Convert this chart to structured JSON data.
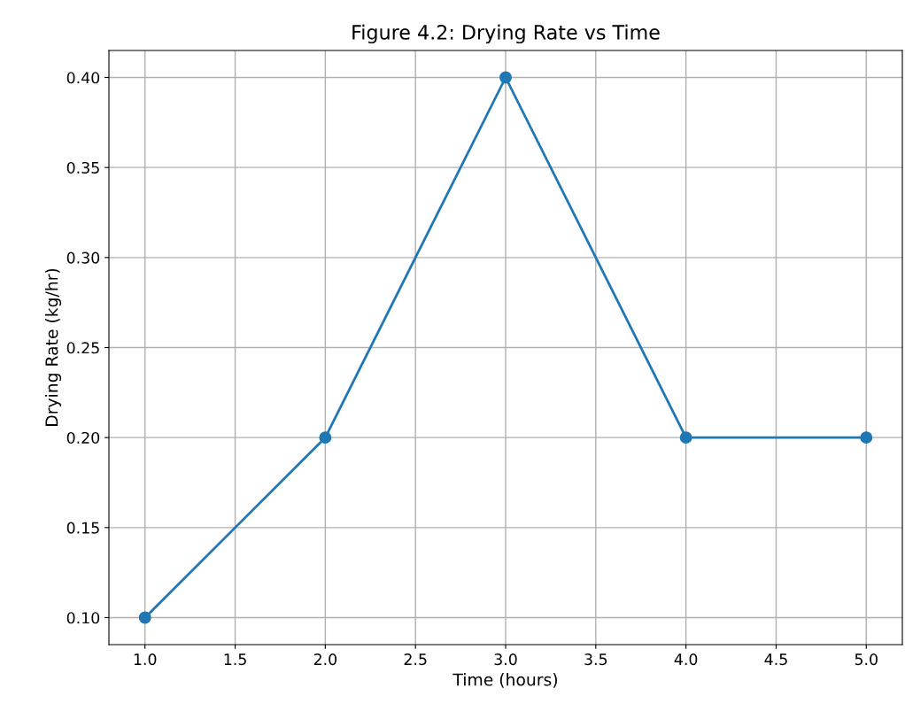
{
  "chart_data": {
    "type": "line",
    "title": "Figure 4.2: Drying Rate vs Time",
    "xlabel": "Time (hours)",
    "ylabel": "Drying Rate (kg/hr)",
    "x": [
      1.0,
      2.0,
      3.0,
      4.0,
      5.0
    ],
    "series": [
      {
        "color": "#1f77b4",
        "values": [
          0.1,
          0.2,
          0.4,
          0.2,
          0.2
        ]
      }
    ],
    "xlim": [
      0.8,
      5.2
    ],
    "ylim": [
      0.085,
      0.415
    ],
    "xticks": [
      {
        "value": 1.0,
        "label": "1.0"
      },
      {
        "value": 1.5,
        "label": "1.5"
      },
      {
        "value": 2.0,
        "label": "2.0"
      },
      {
        "value": 2.5,
        "label": "2.5"
      },
      {
        "value": 3.0,
        "label": "3.0"
      },
      {
        "value": 3.5,
        "label": "3.5"
      },
      {
        "value": 4.0,
        "label": "4.0"
      },
      {
        "value": 4.5,
        "label": "4.5"
      },
      {
        "value": 5.0,
        "label": "5.0"
      }
    ],
    "yticks": [
      {
        "value": 0.1,
        "label": "0.10"
      },
      {
        "value": 0.15,
        "label": "0.15"
      },
      {
        "value": 0.2,
        "label": "0.20"
      },
      {
        "value": 0.25,
        "label": "0.25"
      },
      {
        "value": 0.3,
        "label": "0.30"
      },
      {
        "value": 0.35,
        "label": "0.35"
      },
      {
        "value": 0.4,
        "label": "0.40"
      }
    ],
    "grid": true,
    "marker": "circle",
    "line_style": "solid"
  }
}
